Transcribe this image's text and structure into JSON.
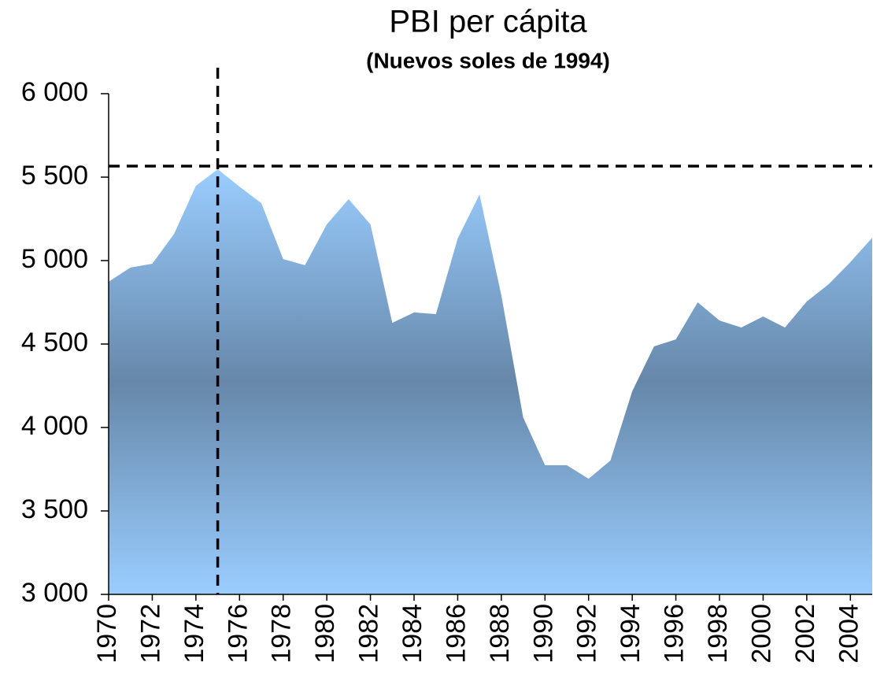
{
  "chart_data": {
    "type": "area",
    "title": "PBI per cápita",
    "subtitle": "(Nuevos soles de 1994)",
    "x": [
      1970,
      1971,
      1972,
      1973,
      1974,
      1975,
      1976,
      1977,
      1978,
      1979,
      1980,
      1981,
      1982,
      1983,
      1984,
      1985,
      1986,
      1987,
      1988,
      1989,
      1990,
      1991,
      1992,
      1993,
      1994,
      1995,
      1996,
      1997,
      1998,
      1999,
      2000,
      2001,
      2002,
      2003,
      2004,
      2005
    ],
    "series": [
      {
        "name": "PBI per cápita",
        "color": "#6688aa",
        "values": [
          4873,
          4958,
          4981,
          5160,
          5448,
          5547,
          5443,
          5344,
          5009,
          4972,
          5217,
          5368,
          5217,
          4627,
          4689,
          4679,
          5132,
          5396,
          4792,
          4061,
          3774,
          3774,
          3693,
          3802,
          4217,
          4486,
          4528,
          4750,
          4641,
          4599,
          4665,
          4599,
          4755,
          4858,
          4991,
          5137
        ]
      }
    ],
    "xlim": [
      1970,
      2005
    ],
    "xticks": [
      1970,
      1972,
      1974,
      1976,
      1978,
      1980,
      1982,
      1984,
      1986,
      1988,
      1990,
      1992,
      1994,
      1996,
      1998,
      2000,
      2002,
      2004
    ],
    "ylim": [
      3000,
      6000
    ],
    "yticks": [
      {
        "value": 3000,
        "label": "3 000"
      },
      {
        "value": 3500,
        "label": "3 500"
      },
      {
        "value": 4000,
        "label": "4 000"
      },
      {
        "value": 4500,
        "label": "4 500"
      },
      {
        "value": 5000,
        "label": "5 000"
      },
      {
        "value": 5500,
        "label": "5 500"
      },
      {
        "value": 6000,
        "label": "6 000"
      }
    ],
    "reference_lines": {
      "x": 1975,
      "y": 5566
    }
  }
}
